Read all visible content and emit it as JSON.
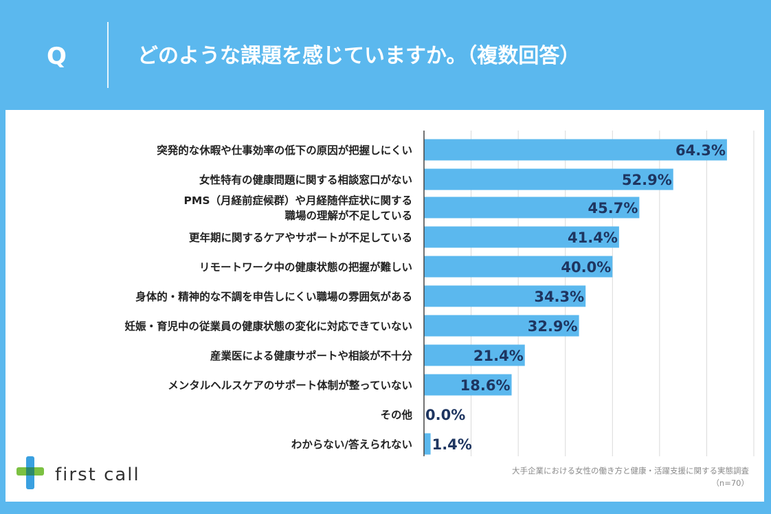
{
  "header": {
    "q_mark": "Q",
    "question": "どのような課題を感じていますか。（複数回答）"
  },
  "chart_data": {
    "type": "bar",
    "orientation": "horizontal",
    "title": "どのような課題を感じていますか。（複数回答）",
    "categories": [
      "突発的な休暇や仕事効率の低下の原因が把握しにくい",
      "女性特有の健康問題に関する相談窓口がない",
      "PMS（月経前症候群）や月経随伴症状に関する 職場の理解が不足している",
      "更年期に関するケアやサポートが不足している",
      "リモートワーク中の健康状態の把握が難しい",
      "身体的・精神的な不調を申告しにくい職場の雰囲気がある",
      "妊娠・育児中の従業員の健康状態の変化に対応できていない",
      "産業医による健康サポートや相談が不十分",
      "メンタルヘルスケアのサポート体制が整っていない",
      "その他",
      "わからない/答えられない"
    ],
    "category_lines": [
      [
        "突発的な休暇や仕事効率の低下の原因が把握しにくい"
      ],
      [
        "女性特有の健康問題に関する相談窓口がない"
      ],
      [
        "PMS（月経前症候群）や月経随伴症状に関する",
        "職場の理解が不足している"
      ],
      [
        "更年期に関するケアやサポートが不足している"
      ],
      [
        "リモートワーク中の健康状態の把握が難しい"
      ],
      [
        "身体的・精神的な不調を申告しにくい職場の雰囲気がある"
      ],
      [
        "妊娠・育児中の従業員の健康状態の変化に対応できていない"
      ],
      [
        "産業医による健康サポートや相談が不十分"
      ],
      [
        "メンタルヘルスケアのサポート体制が整っていない"
      ],
      [
        "その他"
      ],
      [
        "わからない/答えられない"
      ]
    ],
    "values": [
      64.3,
      52.9,
      45.7,
      41.4,
      40.0,
      34.3,
      32.9,
      21.4,
      18.6,
      0.0,
      1.4
    ],
    "value_labels": [
      "64.3%",
      "52.9%",
      "45.7%",
      "41.4%",
      "40.0%",
      "34.3%",
      "32.9%",
      "21.4%",
      "18.6%",
      "0.0%",
      "1.4%"
    ],
    "unit": "%",
    "xlim": [
      0,
      70
    ],
    "grid": true,
    "bar_color": "#5bb8ee",
    "value_color": "#1e3560"
  },
  "logo": {
    "text": "first call",
    "icon": "plus-cross-logo-icon",
    "colors": [
      "#3aa0e0",
      "#7cc142"
    ]
  },
  "source": {
    "line1": "大手企業における女性の働き方と健康・活躍支援に関する実態調査",
    "line2": "（n=70）"
  },
  "colors": {
    "background": "#5bb8ee",
    "panel": "#ffffff"
  }
}
